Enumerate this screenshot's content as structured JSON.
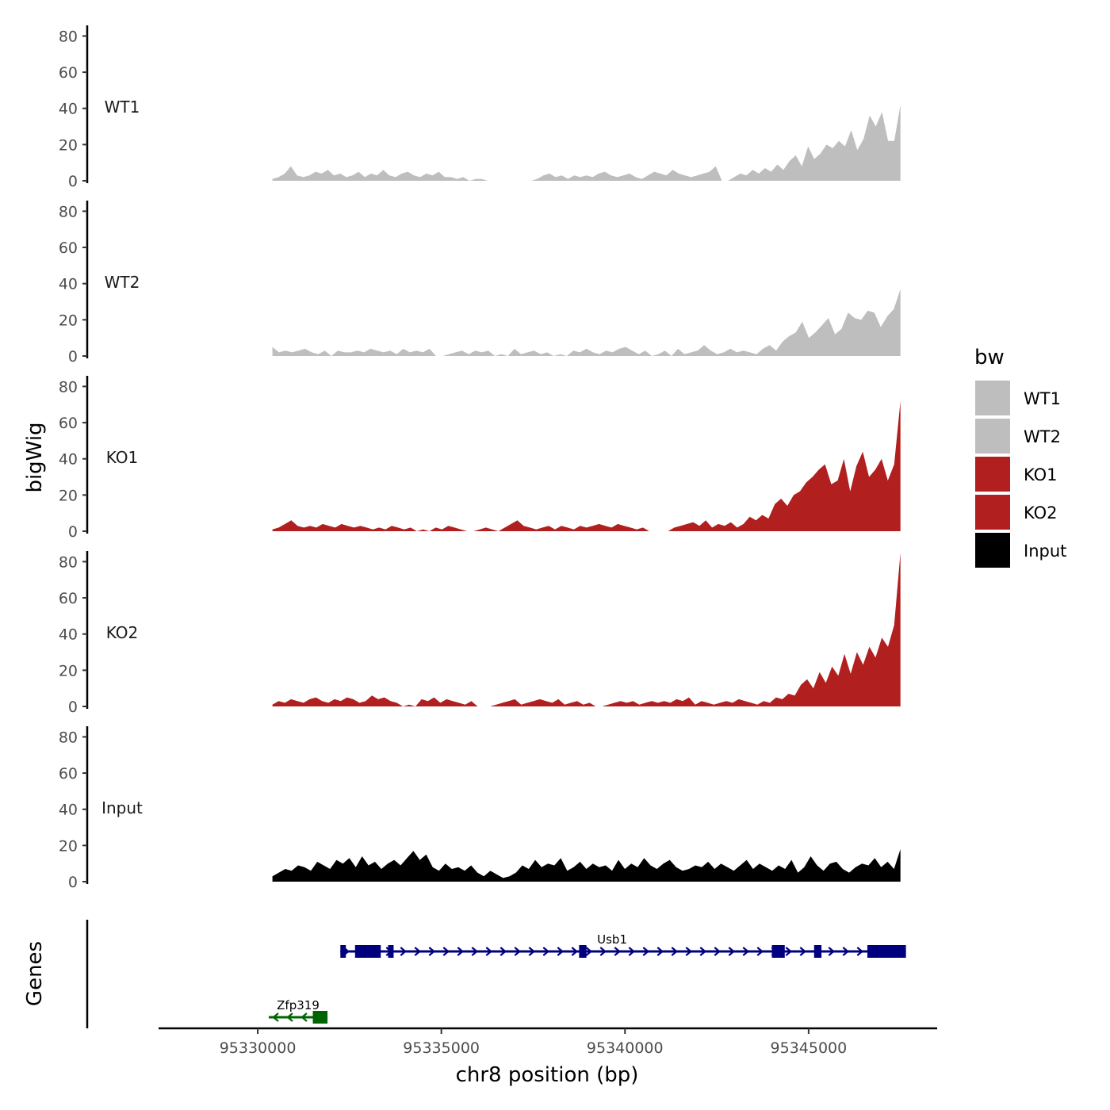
{
  "chart_data": {
    "type": "area",
    "title": "",
    "xlabel": "chr8 position (bp)",
    "ylabel": "bigWig",
    "genes_label": "Genes",
    "xlim": [
      95327300,
      95348500
    ],
    "data_range": [
      95330400,
      95347500
    ],
    "ylim": [
      0,
      85
    ],
    "yticks": [
      0,
      20,
      40,
      60,
      80
    ],
    "xticks": [
      95330000,
      95335000,
      95340000,
      95345000
    ],
    "xtick_labels": [
      "95330000",
      "95335000",
      "95340000",
      "95345000"
    ],
    "legend": {
      "title": "bw",
      "position": "right",
      "entries": [
        {
          "label": "WT1",
          "color": "#bebebe"
        },
        {
          "label": "WT2",
          "color": "#bebebe"
        },
        {
          "label": "KO1",
          "color": "#b21f1f"
        },
        {
          "label": "KO2",
          "color": "#b21f1f"
        },
        {
          "label": "Input",
          "color": "#000000"
        }
      ]
    },
    "series": [
      {
        "name": "WT1",
        "color": "#bebebe",
        "values": [
          1,
          2,
          4,
          8,
          3,
          2,
          3,
          5,
          4,
          6,
          3,
          4,
          2,
          3,
          5,
          2,
          4,
          3,
          6,
          3,
          2,
          4,
          5,
          3,
          2,
          4,
          3,
          5,
          2,
          2,
          1,
          2,
          0,
          1,
          1,
          0,
          0,
          0,
          0,
          0,
          0,
          0,
          0,
          1,
          3,
          4,
          2,
          3,
          1,
          3,
          2,
          3,
          2,
          4,
          5,
          3,
          2,
          3,
          4,
          2,
          1,
          3,
          5,
          4,
          3,
          6,
          4,
          3,
          2,
          3,
          4,
          5,
          8,
          0,
          0,
          2,
          4,
          3,
          6,
          4,
          7,
          5,
          9,
          6,
          11,
          14,
          8,
          19,
          12,
          15,
          20,
          18,
          22,
          19,
          28,
          17,
          23,
          36,
          30,
          38,
          22,
          22,
          42
        ]
      },
      {
        "name": "WT2",
        "color": "#bebebe",
        "values": [
          5,
          2,
          3,
          2,
          3,
          4,
          2,
          1,
          3,
          0,
          3,
          2,
          2,
          3,
          2,
          4,
          3,
          2,
          3,
          1,
          4,
          2,
          3,
          2,
          4,
          0,
          0,
          1,
          2,
          3,
          1,
          3,
          2,
          3,
          0,
          1,
          0,
          4,
          1,
          2,
          3,
          1,
          2,
          0,
          1,
          0,
          3,
          2,
          4,
          2,
          1,
          3,
          2,
          4,
          5,
          3,
          1,
          3,
          0,
          1,
          3,
          0,
          4,
          1,
          2,
          3,
          6,
          3,
          1,
          2,
          4,
          2,
          3,
          2,
          1,
          4,
          6,
          3,
          8,
          11,
          13,
          19,
          10,
          13,
          17,
          21,
          12,
          15,
          24,
          21,
          20,
          25,
          24,
          16,
          22,
          26,
          37
        ]
      },
      {
        "name": "KO1",
        "color": "#b21f1f",
        "values": [
          1,
          2,
          4,
          6,
          3,
          2,
          3,
          2,
          4,
          3,
          2,
          4,
          3,
          2,
          3,
          2,
          1,
          2,
          1,
          3,
          2,
          1,
          2,
          0,
          1,
          0,
          2,
          1,
          3,
          2,
          1,
          0,
          0,
          1,
          2,
          1,
          0,
          2,
          4,
          6,
          3,
          2,
          1,
          2,
          3,
          1,
          3,
          2,
          1,
          3,
          2,
          3,
          4,
          3,
          2,
          4,
          3,
          2,
          1,
          2,
          0,
          0,
          0,
          0,
          2,
          3,
          4,
          5,
          3,
          6,
          2,
          4,
          3,
          5,
          2,
          4,
          8,
          6,
          9,
          7,
          15,
          18,
          14,
          20,
          22,
          27,
          30,
          34,
          37,
          26,
          28,
          40,
          22,
          36,
          44,
          30,
          34,
          40,
          28,
          37,
          72
        ]
      },
      {
        "name": "KO2",
        "color": "#b21f1f",
        "values": [
          1,
          3,
          2,
          4,
          3,
          2,
          4,
          5,
          3,
          2,
          4,
          3,
          5,
          4,
          2,
          3,
          6,
          4,
          5,
          3,
          2,
          0,
          1,
          0,
          4,
          3,
          5,
          2,
          4,
          3,
          2,
          1,
          3,
          0,
          0,
          0,
          1,
          2,
          3,
          4,
          1,
          2,
          3,
          4,
          3,
          2,
          4,
          1,
          2,
          3,
          1,
          2,
          0,
          0,
          1,
          2,
          3,
          2,
          3,
          1,
          2,
          3,
          2,
          3,
          2,
          4,
          3,
          5,
          1,
          3,
          2,
          1,
          2,
          3,
          2,
          4,
          3,
          2,
          1,
          3,
          2,
          5,
          4,
          7,
          6,
          12,
          15,
          10,
          19,
          13,
          22,
          17,
          29,
          18,
          30,
          23,
          33,
          27,
          38,
          33,
          45,
          85
        ]
      },
      {
        "name": "Input",
        "color": "#000000",
        "values": [
          3,
          5,
          7,
          6,
          9,
          8,
          6,
          11,
          9,
          7,
          12,
          10,
          13,
          8,
          14,
          9,
          11,
          7,
          10,
          12,
          9,
          13,
          17,
          12,
          15,
          8,
          6,
          10,
          7,
          8,
          6,
          9,
          5,
          3,
          6,
          4,
          2,
          3,
          5,
          9,
          7,
          12,
          8,
          10,
          9,
          13,
          6,
          8,
          11,
          7,
          10,
          8,
          9,
          6,
          12,
          7,
          10,
          8,
          13,
          9,
          7,
          10,
          12,
          8,
          6,
          7,
          9,
          8,
          11,
          7,
          10,
          8,
          6,
          9,
          12,
          7,
          10,
          8,
          6,
          9,
          7,
          12,
          5,
          8,
          14,
          9,
          6,
          10,
          11,
          7,
          5,
          8,
          10,
          9,
          13,
          8,
          11,
          7,
          18
        ]
      }
    ],
    "genes": [
      {
        "name": "Usb1",
        "strand": "+",
        "color": "#00007f",
        "start": 95332250,
        "end": 95347650,
        "exons": [
          [
            95332250,
            95332400
          ],
          [
            95332650,
            95333350
          ],
          [
            95333550,
            95333700
          ],
          [
            95338750,
            95338950
          ],
          [
            95344000,
            95344350
          ],
          [
            95345150,
            95345350
          ],
          [
            95346600,
            95347650
          ]
        ]
      },
      {
        "name": "Zfp319",
        "strand": "-",
        "color": "#006400",
        "start": 95330300,
        "end": 95331900,
        "exons": [
          [
            95331500,
            95331900
          ]
        ]
      }
    ]
  }
}
